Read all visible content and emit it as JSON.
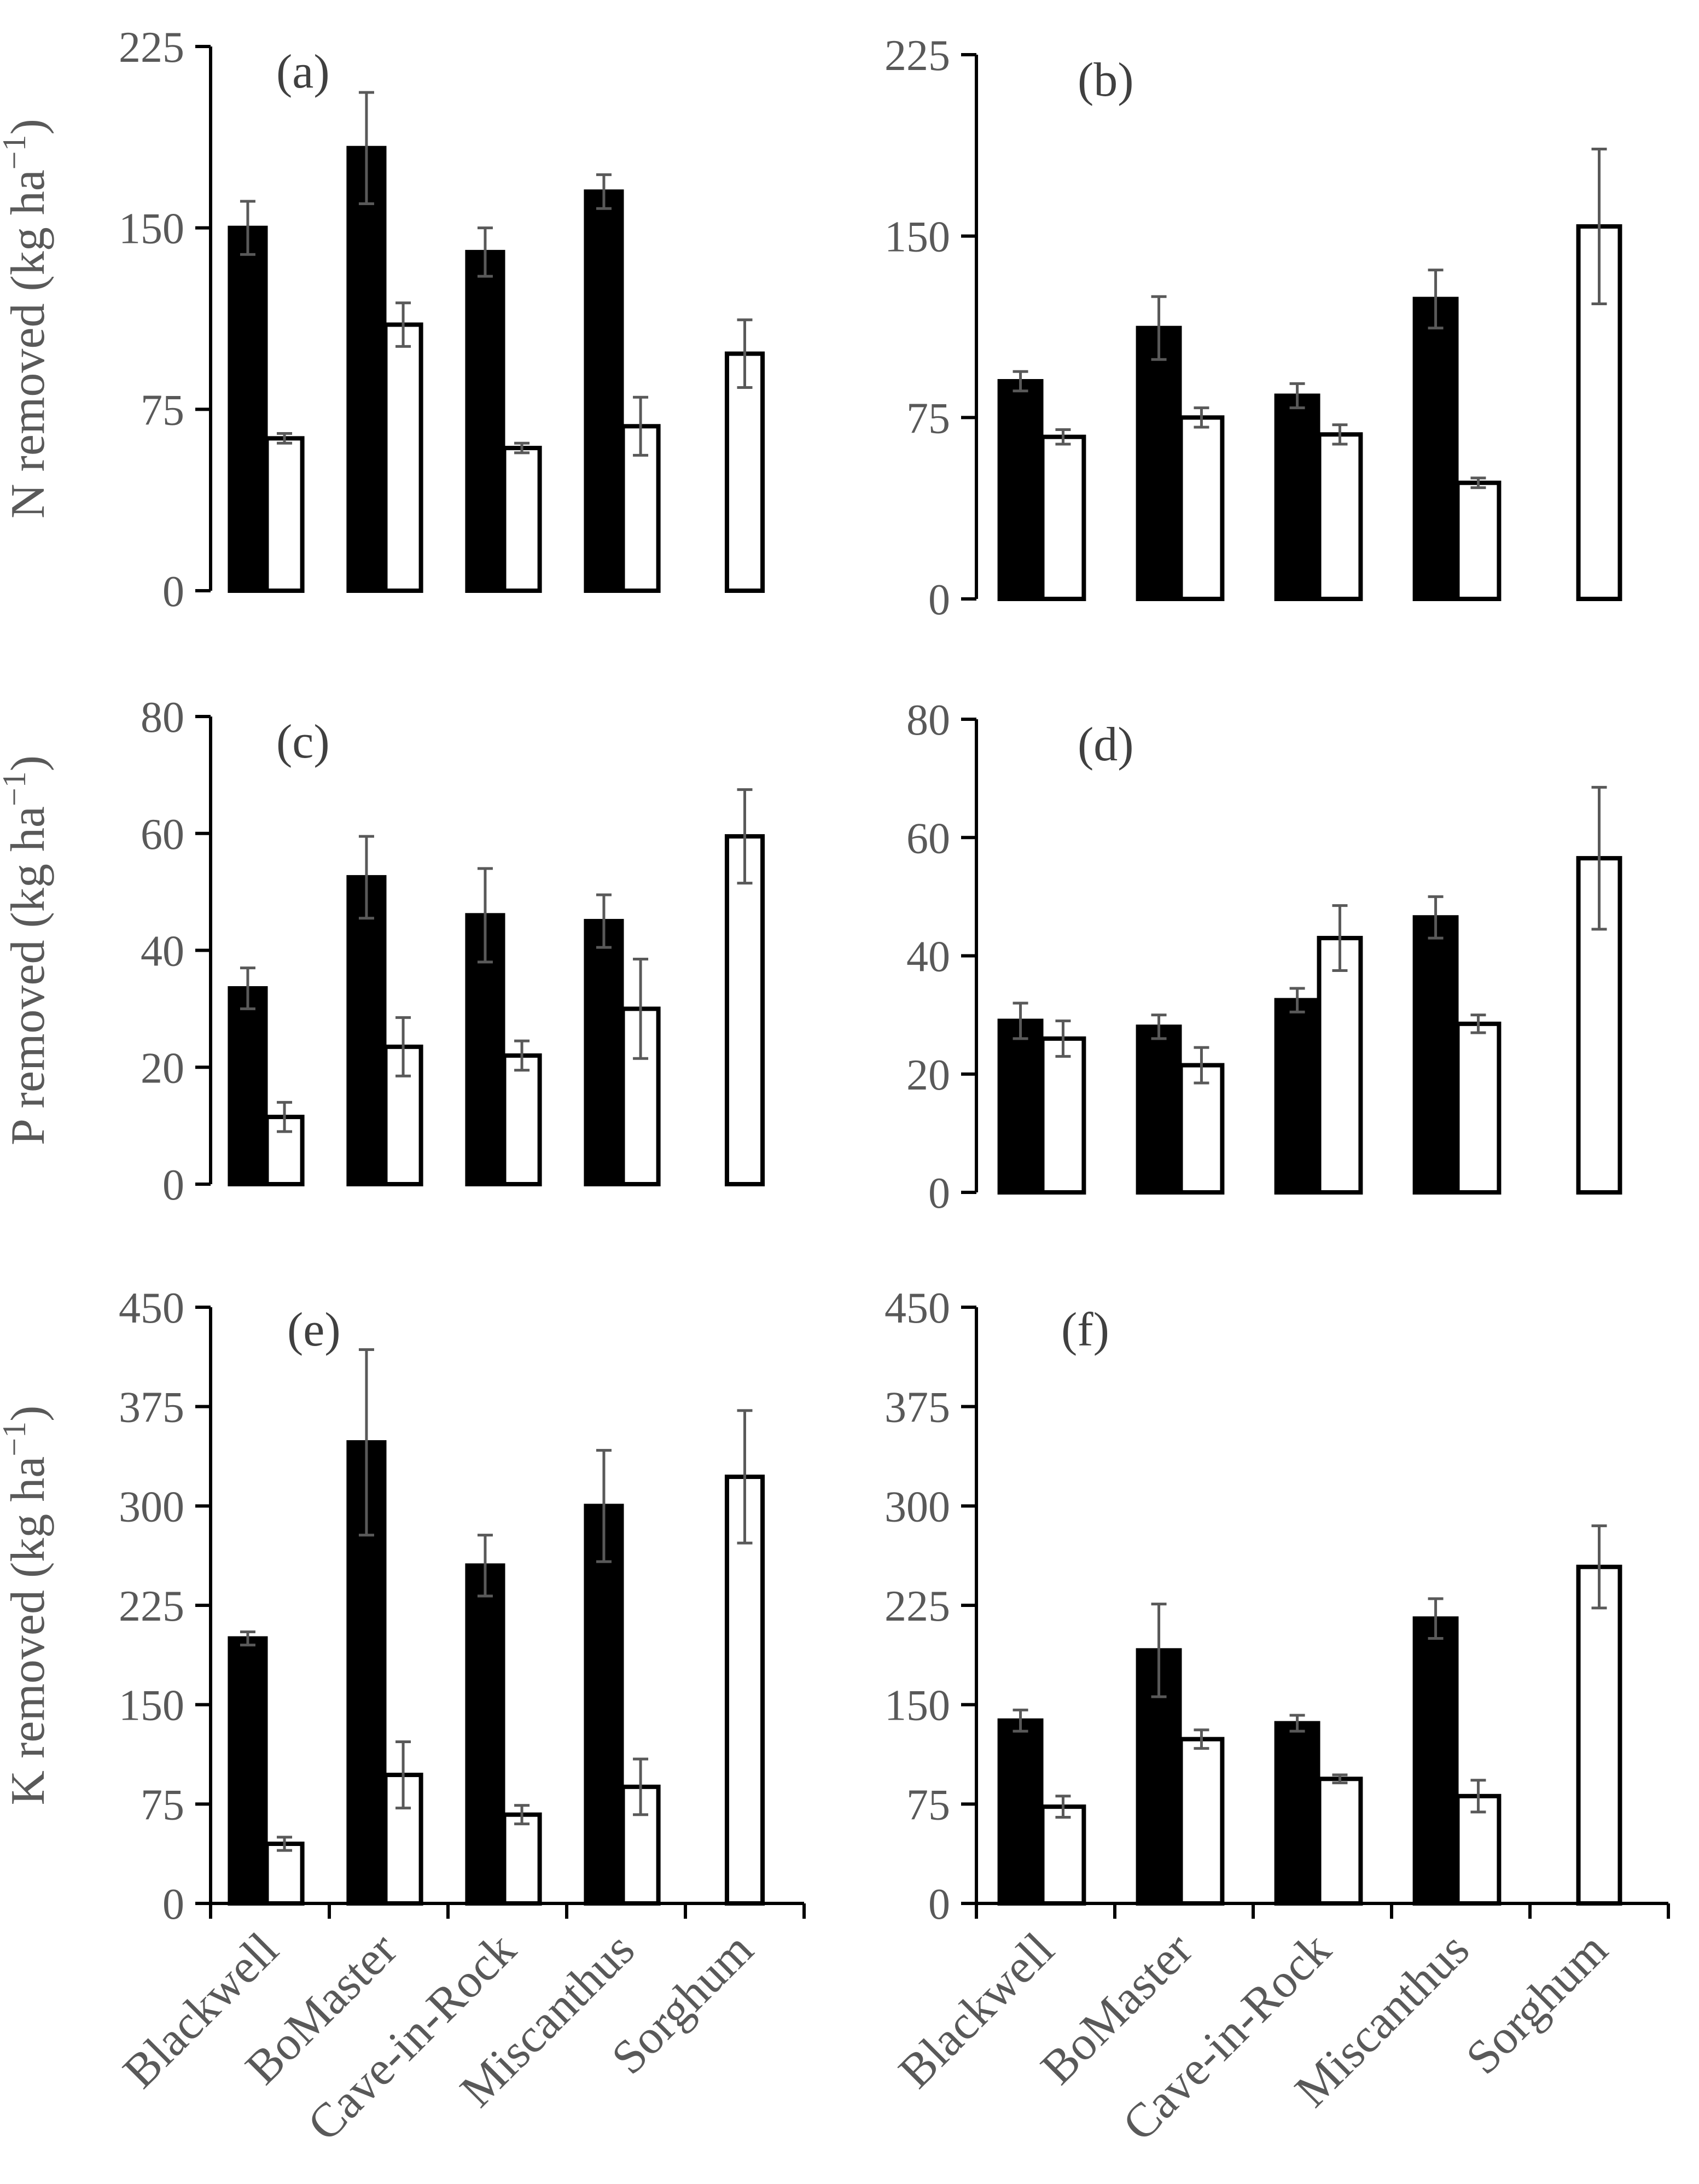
{
  "chart_data": [
    {
      "panel": "(a)",
      "type": "bar",
      "ylabel_nutrient": "N",
      "ylabel_rest": " removed (kg ha",
      "ylabel_sup": "−1",
      "ylabel_end": ")",
      "categories": [
        "Blackwell",
        "BoMaster",
        "Cave-in-Rock",
        "Miscanthus",
        "Sorghum"
      ],
      "ylim": [
        0,
        225
      ],
      "yticks": [
        0,
        75,
        150,
        225
      ],
      "series": [
        {
          "name": "dark",
          "values": [
            150,
            183,
            140,
            165,
            null
          ],
          "errors": [
            11,
            23,
            10,
            7,
            null
          ]
        },
        {
          "name": "light",
          "values": [
            63,
            110,
            59,
            68,
            98
          ],
          "errors": [
            2,
            9,
            2,
            12,
            14
          ]
        }
      ]
    },
    {
      "panel": "(b)",
      "type": "bar",
      "categories": [
        "Blackwell",
        "BoMaster",
        "Cave-in-Rock",
        "Miscanthus",
        "Sorghum"
      ],
      "ylim": [
        0,
        225
      ],
      "yticks": [
        0,
        75,
        150,
        225
      ],
      "series": [
        {
          "name": "dark",
          "values": [
            90,
            112,
            84,
            124,
            null
          ],
          "errors": [
            4,
            13,
            5,
            12,
            null
          ]
        },
        {
          "name": "light",
          "values": [
            67,
            75,
            68,
            48,
            154
          ],
          "errors": [
            3,
            4,
            4,
            2,
            32
          ]
        }
      ]
    },
    {
      "panel": "(c)",
      "type": "bar",
      "ylabel_nutrient": "P",
      "ylabel_rest": " removed (kg ha",
      "ylabel_sup": "−1",
      "ylabel_end": ")",
      "categories": [
        "Blackwell",
        "BoMaster",
        "Cave-in-Rock",
        "Miscanthus",
        "Sorghum"
      ],
      "ylim": [
        0,
        80
      ],
      "yticks": [
        0,
        20,
        40,
        60,
        80
      ],
      "series": [
        {
          "name": "dark",
          "values": [
            33.5,
            52.5,
            46,
            45,
            null
          ],
          "errors": [
            3.5,
            7,
            8,
            4.5,
            null
          ]
        },
        {
          "name": "light",
          "values": [
            11.5,
            23.5,
            22,
            30,
            59.5
          ],
          "errors": [
            2.5,
            5,
            2.5,
            8.5,
            8
          ]
        }
      ]
    },
    {
      "panel": "(d)",
      "type": "bar",
      "categories": [
        "Blackwell",
        "BoMaster",
        "Cave-in-Rock",
        "Miscanthus",
        "Sorghum"
      ],
      "ylim": [
        0,
        80
      ],
      "yticks": [
        0,
        20,
        40,
        60,
        80
      ],
      "series": [
        {
          "name": "dark",
          "values": [
            29,
            28,
            32.5,
            46.5,
            null
          ],
          "errors": [
            3,
            2,
            2,
            3.5,
            null
          ]
        },
        {
          "name": "light",
          "values": [
            26,
            21.5,
            43,
            28.5,
            56.5
          ],
          "errors": [
            3,
            3,
            5.5,
            1.5,
            12
          ]
        }
      ]
    },
    {
      "panel": "(e)",
      "type": "bar",
      "ylabel_nutrient": "K",
      "ylabel_rest": " removed (kg ha",
      "ylabel_sup": "−1",
      "ylabel_end": ")",
      "categories": [
        "Blackwell",
        "BoMaster",
        "Cave-in-Rock",
        "Miscanthus",
        "Sorghum"
      ],
      "ylim": [
        0,
        450
      ],
      "yticks": [
        0,
        75,
        150,
        225,
        300,
        375,
        450
      ],
      "series": [
        {
          "name": "dark",
          "values": [
            200,
            348,
            255,
            300,
            null
          ],
          "errors": [
            5,
            70,
            23,
            42,
            null
          ]
        },
        {
          "name": "light",
          "values": [
            45,
            97,
            67,
            88,
            322
          ],
          "errors": [
            5,
            25,
            7,
            21,
            50
          ]
        }
      ]
    },
    {
      "panel": "(f)",
      "type": "bar",
      "categories": [
        "Blackwell",
        "BoMaster",
        "Cave-in-Rock",
        "Miscanthus",
        "Sorghum"
      ],
      "ylim": [
        0,
        450
      ],
      "yticks": [
        0,
        75,
        150,
        225,
        300,
        375,
        450
      ],
      "series": [
        {
          "name": "dark",
          "values": [
            138,
            191,
            136,
            215,
            null
          ],
          "errors": [
            8,
            35,
            6,
            15,
            null
          ]
        },
        {
          "name": "light",
          "values": [
            73,
            124,
            94,
            81,
            254
          ],
          "errors": [
            8,
            7,
            3,
            12,
            31
          ]
        }
      ]
    }
  ]
}
